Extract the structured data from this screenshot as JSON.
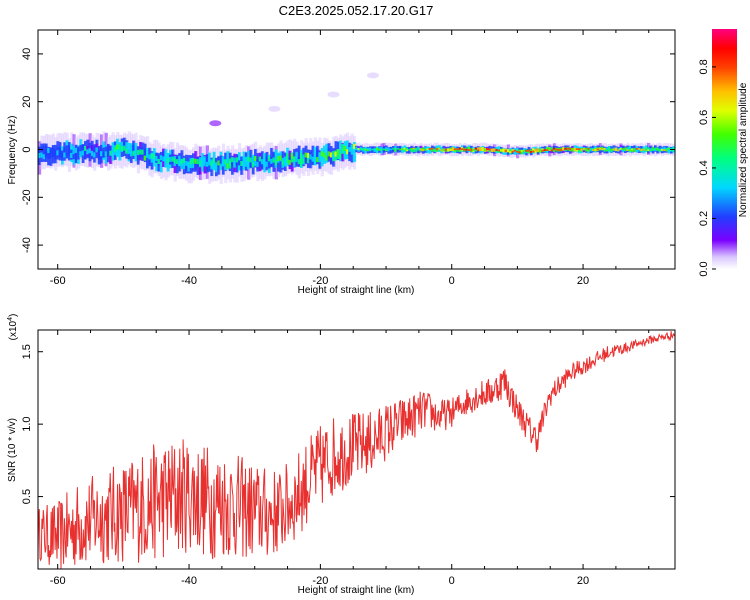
{
  "title": "C2E3.2025.052.17.20.G17",
  "colors": {
    "snr_line": "#e8302f",
    "frame": "#000000"
  },
  "chart_data": [
    {
      "type": "heatmap",
      "xlabel": "Height of straight line (km)",
      "ylabel": "Frequency (Hz)",
      "xlim": [
        -63,
        34
      ],
      "ylim": [
        -50,
        50
      ],
      "x_ticks": [
        -60,
        -40,
        -20,
        0,
        20
      ],
      "y_ticks": [
        40,
        20,
        0,
        -20,
        -40
      ],
      "colorbar": {
        "label": "Normalized spectral amplitude",
        "range": [
          0,
          0.95
        ],
        "ticks": [
          0.0,
          0.2,
          0.4,
          0.6,
          0.8
        ],
        "colormap": "rainbow (white-violet-blue-cyan-green-yellow-orange-red-magenta)"
      },
      "dominant_track": {
        "x": [
          -63,
          -58,
          -53,
          -50,
          -45,
          -40,
          -35,
          -30,
          -25,
          -20,
          -15,
          -10,
          -5,
          0,
          5,
          10,
          15,
          20,
          25,
          30,
          34
        ],
        "freq": [
          -2,
          -1,
          -1,
          0,
          -4,
          -6,
          -6,
          -5,
          -4,
          -3,
          0,
          0,
          0,
          0,
          0,
          -1,
          0,
          0,
          0,
          0,
          0
        ],
        "amplitude": [
          0.35,
          0.35,
          0.4,
          0.5,
          0.45,
          0.45,
          0.5,
          0.45,
          0.55,
          0.5,
          0.55,
          0.5,
          0.6,
          0.9,
          0.85,
          0.8,
          0.85,
          0.75,
          0.7,
          0.65,
          0.6
        ]
      },
      "faint_features": [
        {
          "x": -36,
          "freq": 11,
          "amplitude": 0.1
        },
        {
          "x": -27,
          "freq": 17,
          "amplitude": 0.05
        },
        {
          "x": -18,
          "freq": 23,
          "amplitude": 0.05
        },
        {
          "x": -12,
          "freq": 31,
          "amplitude": 0.05
        }
      ]
    },
    {
      "type": "line",
      "xlabel": "Height of straight line (km)",
      "ylabel": "SNR (10 * v/v)",
      "y_scale_label": "(x10^4)",
      "xlim": [
        -63,
        34
      ],
      "ylim": [
        0,
        1.65
      ],
      "x_ticks": [
        -60,
        -40,
        -20,
        0,
        20
      ],
      "y_ticks": [
        0.5,
        1.0,
        1.5
      ],
      "series": [
        {
          "x": [
            -63,
            -60,
            -57,
            -54,
            -51,
            -48,
            -46,
            -44,
            -42,
            -40,
            -38,
            -36,
            -34,
            -32,
            -30,
            -28,
            -26,
            -24,
            -22,
            -20,
            -18,
            -16,
            -14,
            -12,
            -10,
            -8,
            -6,
            -4,
            -2,
            0,
            2,
            4,
            6,
            8,
            10,
            12,
            13,
            15,
            18,
            20,
            22,
            24,
            26,
            28,
            30,
            32,
            34
          ],
          "values": [
            0.25,
            0.22,
            0.3,
            0.35,
            0.38,
            0.42,
            0.45,
            0.48,
            0.5,
            0.52,
            0.48,
            0.46,
            0.45,
            0.42,
            0.4,
            0.38,
            0.4,
            0.48,
            0.6,
            0.7,
            0.78,
            0.82,
            0.85,
            0.88,
            0.95,
            1.0,
            1.05,
            1.1,
            1.05,
            1.08,
            1.15,
            1.2,
            1.22,
            1.3,
            1.1,
            0.95,
            0.9,
            1.2,
            1.35,
            1.4,
            1.45,
            1.5,
            1.52,
            1.55,
            1.58,
            1.6,
            1.62
          ],
          "noise_amp": [
            0.18,
            0.25,
            0.3,
            0.32,
            0.35,
            0.38,
            0.4,
            0.42,
            0.42,
            0.4,
            0.4,
            0.4,
            0.38,
            0.36,
            0.34,
            0.32,
            0.3,
            0.3,
            0.3,
            0.3,
            0.28,
            0.26,
            0.24,
            0.22,
            0.2,
            0.18,
            0.16,
            0.14,
            0.12,
            0.1,
            0.1,
            0.1,
            0.1,
            0.12,
            0.1,
            0.1,
            0.1,
            0.08,
            0.06,
            0.06,
            0.05,
            0.05,
            0.04,
            0.03,
            0.03,
            0.03,
            0.03
          ]
        }
      ]
    }
  ]
}
